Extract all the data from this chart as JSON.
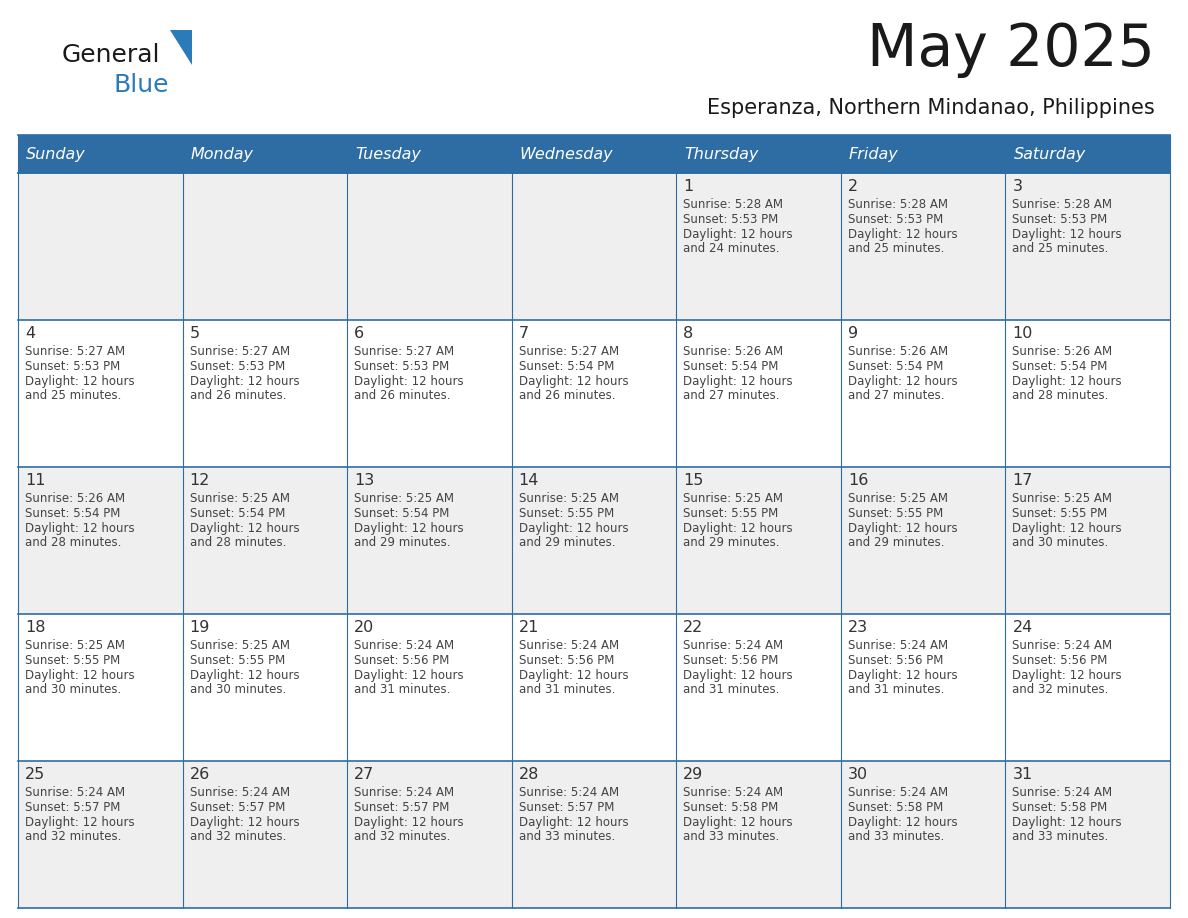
{
  "title": "May 2025",
  "subtitle": "Esperanza, Northern Mindanao, Philippines",
  "days_of_week": [
    "Sunday",
    "Monday",
    "Tuesday",
    "Wednesday",
    "Thursday",
    "Friday",
    "Saturday"
  ],
  "header_bg": "#2E6DA4",
  "header_text": "#FFFFFF",
  "cell_bg_even": "#EFEFEF",
  "cell_bg_odd": "#FFFFFF",
  "day_number_color": "#333333",
  "text_color": "#444444",
  "border_color": "#2E6DA4",
  "logo_general_color": "#1a1a1a",
  "logo_blue_color": "#2B7BB9",
  "calendar_data": [
    [
      {
        "day": null,
        "sunrise": null,
        "sunset": null,
        "daylight": null
      },
      {
        "day": null,
        "sunrise": null,
        "sunset": null,
        "daylight": null
      },
      {
        "day": null,
        "sunrise": null,
        "sunset": null,
        "daylight": null
      },
      {
        "day": null,
        "sunrise": null,
        "sunset": null,
        "daylight": null
      },
      {
        "day": 1,
        "sunrise": "5:28 AM",
        "sunset": "5:53 PM",
        "daylight": "12 hours and 24 minutes"
      },
      {
        "day": 2,
        "sunrise": "5:28 AM",
        "sunset": "5:53 PM",
        "daylight": "12 hours and 25 minutes"
      },
      {
        "day": 3,
        "sunrise": "5:28 AM",
        "sunset": "5:53 PM",
        "daylight": "12 hours and 25 minutes"
      }
    ],
    [
      {
        "day": 4,
        "sunrise": "5:27 AM",
        "sunset": "5:53 PM",
        "daylight": "12 hours and 25 minutes"
      },
      {
        "day": 5,
        "sunrise": "5:27 AM",
        "sunset": "5:53 PM",
        "daylight": "12 hours and 26 minutes"
      },
      {
        "day": 6,
        "sunrise": "5:27 AM",
        "sunset": "5:53 PM",
        "daylight": "12 hours and 26 minutes"
      },
      {
        "day": 7,
        "sunrise": "5:27 AM",
        "sunset": "5:54 PM",
        "daylight": "12 hours and 26 minutes"
      },
      {
        "day": 8,
        "sunrise": "5:26 AM",
        "sunset": "5:54 PM",
        "daylight": "12 hours and 27 minutes"
      },
      {
        "day": 9,
        "sunrise": "5:26 AM",
        "sunset": "5:54 PM",
        "daylight": "12 hours and 27 minutes"
      },
      {
        "day": 10,
        "sunrise": "5:26 AM",
        "sunset": "5:54 PM",
        "daylight": "12 hours and 28 minutes"
      }
    ],
    [
      {
        "day": 11,
        "sunrise": "5:26 AM",
        "sunset": "5:54 PM",
        "daylight": "12 hours and 28 minutes"
      },
      {
        "day": 12,
        "sunrise": "5:25 AM",
        "sunset": "5:54 PM",
        "daylight": "12 hours and 28 minutes"
      },
      {
        "day": 13,
        "sunrise": "5:25 AM",
        "sunset": "5:54 PM",
        "daylight": "12 hours and 29 minutes"
      },
      {
        "day": 14,
        "sunrise": "5:25 AM",
        "sunset": "5:55 PM",
        "daylight": "12 hours and 29 minutes"
      },
      {
        "day": 15,
        "sunrise": "5:25 AM",
        "sunset": "5:55 PM",
        "daylight": "12 hours and 29 minutes"
      },
      {
        "day": 16,
        "sunrise": "5:25 AM",
        "sunset": "5:55 PM",
        "daylight": "12 hours and 29 minutes"
      },
      {
        "day": 17,
        "sunrise": "5:25 AM",
        "sunset": "5:55 PM",
        "daylight": "12 hours and 30 minutes"
      }
    ],
    [
      {
        "day": 18,
        "sunrise": "5:25 AM",
        "sunset": "5:55 PM",
        "daylight": "12 hours and 30 minutes"
      },
      {
        "day": 19,
        "sunrise": "5:25 AM",
        "sunset": "5:55 PM",
        "daylight": "12 hours and 30 minutes"
      },
      {
        "day": 20,
        "sunrise": "5:24 AM",
        "sunset": "5:56 PM",
        "daylight": "12 hours and 31 minutes"
      },
      {
        "day": 21,
        "sunrise": "5:24 AM",
        "sunset": "5:56 PM",
        "daylight": "12 hours and 31 minutes"
      },
      {
        "day": 22,
        "sunrise": "5:24 AM",
        "sunset": "5:56 PM",
        "daylight": "12 hours and 31 minutes"
      },
      {
        "day": 23,
        "sunrise": "5:24 AM",
        "sunset": "5:56 PM",
        "daylight": "12 hours and 31 minutes"
      },
      {
        "day": 24,
        "sunrise": "5:24 AM",
        "sunset": "5:56 PM",
        "daylight": "12 hours and 32 minutes"
      }
    ],
    [
      {
        "day": 25,
        "sunrise": "5:24 AM",
        "sunset": "5:57 PM",
        "daylight": "12 hours and 32 minutes"
      },
      {
        "day": 26,
        "sunrise": "5:24 AM",
        "sunset": "5:57 PM",
        "daylight": "12 hours and 32 minutes"
      },
      {
        "day": 27,
        "sunrise": "5:24 AM",
        "sunset": "5:57 PM",
        "daylight": "12 hours and 32 minutes"
      },
      {
        "day": 28,
        "sunrise": "5:24 AM",
        "sunset": "5:57 PM",
        "daylight": "12 hours and 33 minutes"
      },
      {
        "day": 29,
        "sunrise": "5:24 AM",
        "sunset": "5:58 PM",
        "daylight": "12 hours and 33 minutes"
      },
      {
        "day": 30,
        "sunrise": "5:24 AM",
        "sunset": "5:58 PM",
        "daylight": "12 hours and 33 minutes"
      },
      {
        "day": 31,
        "sunrise": "5:24 AM",
        "sunset": "5:58 PM",
        "daylight": "12 hours and 33 minutes"
      }
    ]
  ]
}
